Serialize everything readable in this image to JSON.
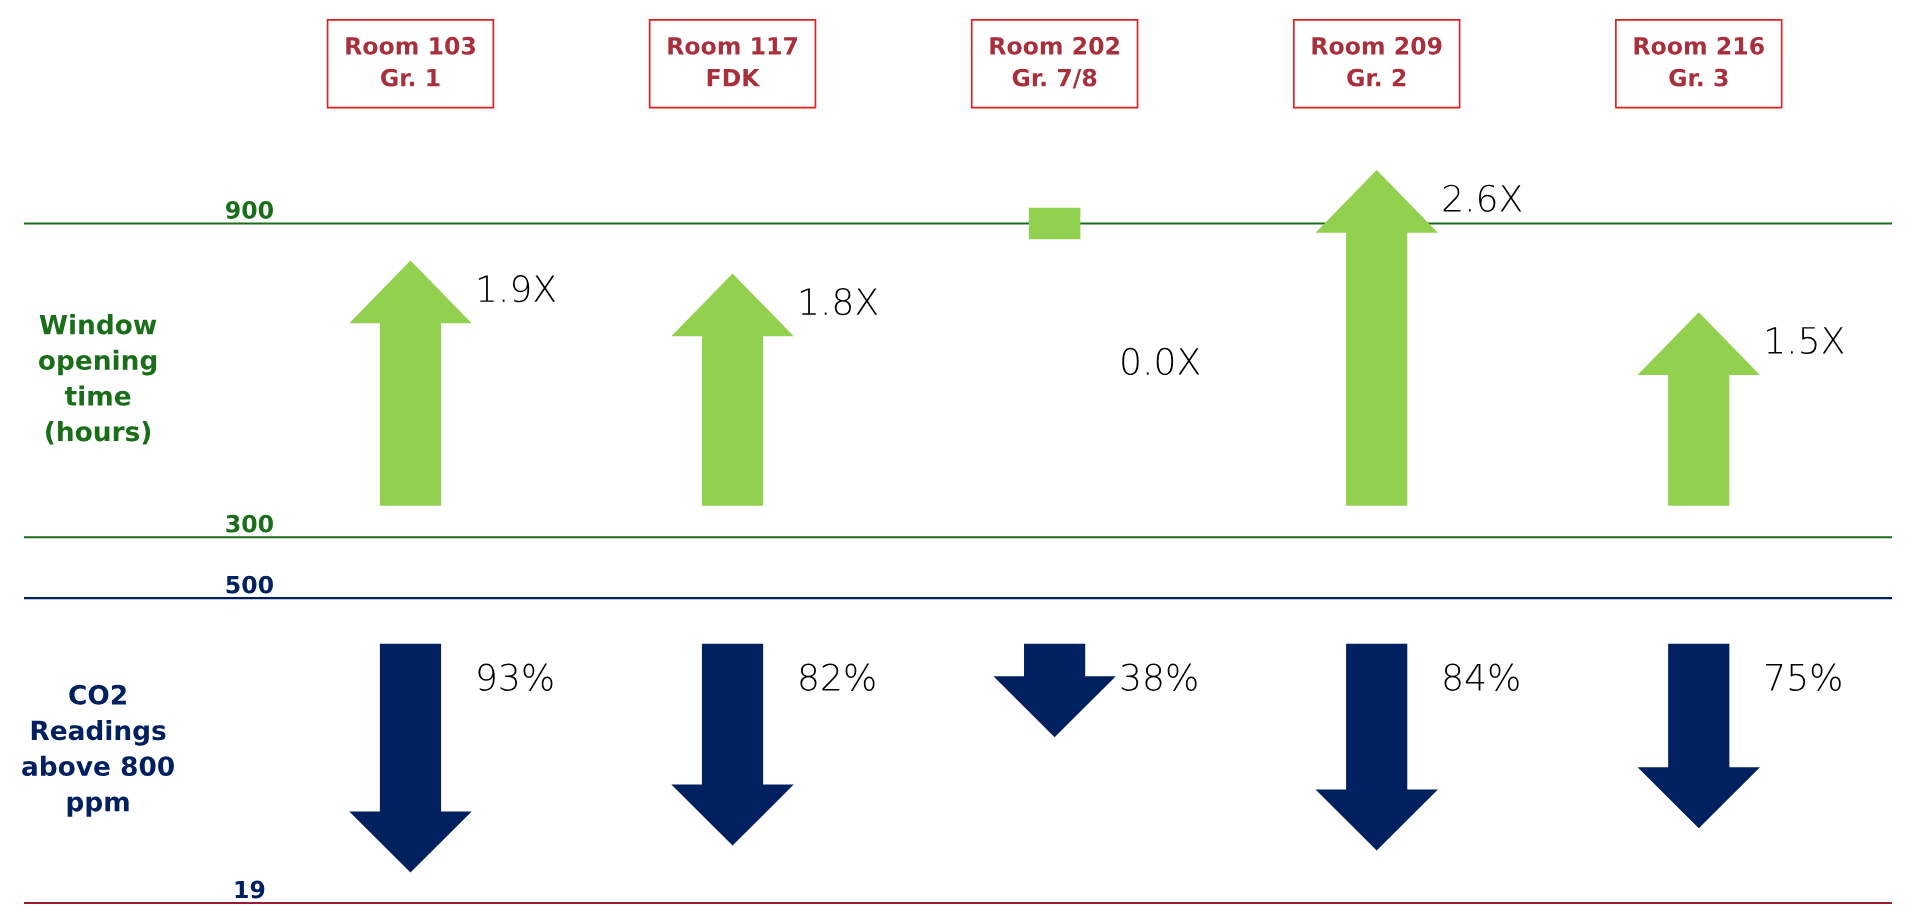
{
  "chart_data": [
    {
      "type": "other",
      "categories": [
        "Room 103\nGr. 1",
        "Room 117\nFDK",
        "Room 202\nGr. 7/8",
        "Room 209\nGr. 2",
        "Room 216\nGr. 3"
      ],
      "ylabel": "Window opening time\n(hours)",
      "color": "#92d050",
      "values": [
        1.9,
        1.8,
        0.0,
        2.6,
        1.5
      ],
      "value_labels": [
        "1.9X",
        "1.8X",
        "0.0X",
        "2.6X",
        "1.5X"
      ],
      "annotations": [
        "900",
        "300"
      ]
    },
    {
      "type": "other",
      "ylabel": "CO2\nReadings\nabove 800\nppm",
      "color": "#002060",
      "values": [
        93,
        82,
        38,
        84,
        75
      ],
      "value_labels": [
        "93%",
        "82%",
        "38%",
        "84%",
        "75%"
      ],
      "annotations": [
        "500",
        "19"
      ]
    }
  ]
}
